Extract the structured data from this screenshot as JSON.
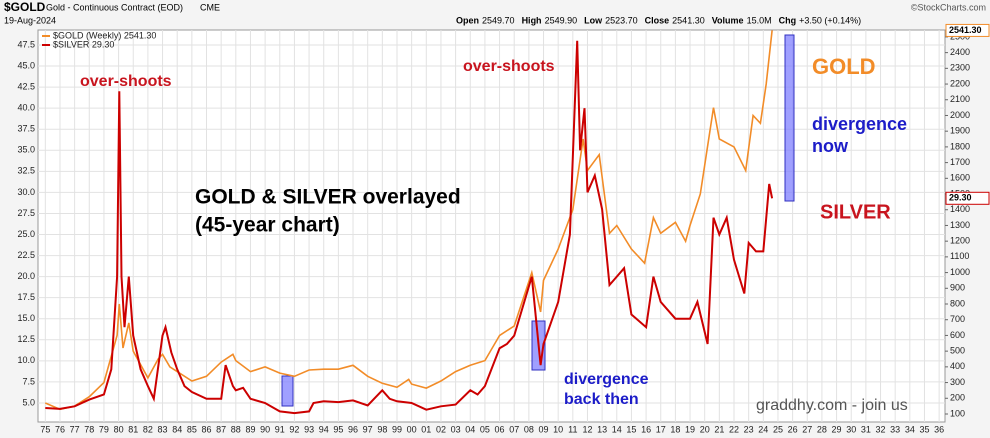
{
  "chart_data": {
    "type": "line",
    "header": {
      "symbol": "$GOLD",
      "description": "Gold - Continuous Contract (EOD)",
      "exchange": "CME",
      "source": "©StockCharts.com",
      "date": "19-Aug-2024",
      "quote": [
        [
          "Open",
          "2549.70"
        ],
        [
          "High",
          "2549.90"
        ],
        [
          "Low",
          "2523.70"
        ],
        [
          "Close",
          "2541.30"
        ],
        [
          "Volume",
          "15.0M"
        ],
        [
          "Chg",
          "+3.50 (+0.14%)"
        ]
      ]
    },
    "xlim": [
      1974.5,
      2036.4
    ],
    "xticks": [
      {
        "value": 1975,
        "label": "75"
      },
      {
        "value": 1976,
        "label": "76"
      },
      {
        "value": 1977,
        "label": "77"
      },
      {
        "value": 1978,
        "label": "78"
      },
      {
        "value": 1979,
        "label": "79"
      },
      {
        "value": 1980,
        "label": "80"
      },
      {
        "value": 1981,
        "label": "81"
      },
      {
        "value": 1982,
        "label": "82"
      },
      {
        "value": 1983,
        "label": "83"
      },
      {
        "value": 1984,
        "label": "84"
      },
      {
        "value": 1985,
        "label": "85"
      },
      {
        "value": 1986,
        "label": "86"
      },
      {
        "value": 1987,
        "label": "87"
      },
      {
        "value": 1988,
        "label": "88"
      },
      {
        "value": 1989,
        "label": "89"
      },
      {
        "value": 1990,
        "label": "90"
      },
      {
        "value": 1991,
        "label": "91"
      },
      {
        "value": 1992,
        "label": "92"
      },
      {
        "value": 1993,
        "label": "93"
      },
      {
        "value": 1994,
        "label": "94"
      },
      {
        "value": 1995,
        "label": "95"
      },
      {
        "value": 1996,
        "label": "96"
      },
      {
        "value": 1997,
        "label": "97"
      },
      {
        "value": 1998,
        "label": "98"
      },
      {
        "value": 1999,
        "label": "99"
      },
      {
        "value": 2000,
        "label": "00"
      },
      {
        "value": 2001,
        "label": "01"
      },
      {
        "value": 2002,
        "label": "02"
      },
      {
        "value": 2003,
        "label": "03"
      },
      {
        "value": 2004,
        "label": "04"
      },
      {
        "value": 2005,
        "label": "05"
      },
      {
        "value": 2006,
        "label": "06"
      },
      {
        "value": 2007,
        "label": "07"
      },
      {
        "value": 2008,
        "label": "08"
      },
      {
        "value": 2009,
        "label": "09"
      },
      {
        "value": 2010,
        "label": "10"
      },
      {
        "value": 2011,
        "label": "11"
      },
      {
        "value": 2012,
        "label": "12"
      },
      {
        "value": 2013,
        "label": "13"
      },
      {
        "value": 2014,
        "label": "14"
      },
      {
        "value": 2015,
        "label": "15"
      },
      {
        "value": 2016,
        "label": "16"
      },
      {
        "value": 2017,
        "label": "17"
      },
      {
        "value": 2018,
        "label": "18"
      },
      {
        "value": 2019,
        "label": "19"
      },
      {
        "value": 2020,
        "label": "20"
      },
      {
        "value": 2021,
        "label": "21"
      },
      {
        "value": 2022,
        "label": "22"
      },
      {
        "value": 2023,
        "label": "23"
      },
      {
        "value": 2024,
        "label": "24"
      },
      {
        "value": 2025,
        "label": "25"
      },
      {
        "value": 2026,
        "label": "26"
      },
      {
        "value": 2027,
        "label": "27"
      },
      {
        "value": 2028,
        "label": "28"
      },
      {
        "value": 2029,
        "label": "29"
      },
      {
        "value": 2030,
        "label": "30"
      },
      {
        "value": 2031,
        "label": "31"
      },
      {
        "value": 2032,
        "label": "32"
      },
      {
        "value": 2033,
        "label": "33"
      },
      {
        "value": 2034,
        "label": "34"
      },
      {
        "value": 2035,
        "label": "35"
      },
      {
        "value": 2036,
        "label": "36"
      }
    ],
    "ylim": [
      2.74,
      49.28
    ],
    "yticks": [
      {
        "value": 5,
        "label": "5.0"
      },
      7.5,
      {
        "value": 10,
        "label": "10.0"
      },
      12.5,
      {
        "value": 15,
        "label": "15.0"
      },
      17.5,
      {
        "value": 20,
        "label": "20.0"
      },
      22.5,
      {
        "value": 25,
        "label": "25.0"
      },
      27.5,
      {
        "value": 30,
        "label": "30.0"
      },
      32.5,
      {
        "value": 35,
        "label": "35.0"
      },
      37.5,
      {
        "value": 40,
        "label": "40.0"
      },
      42.5,
      {
        "value": 45,
        "label": "45.0"
      },
      47.5
    ],
    "y2lim": [
      49,
      2544
    ],
    "y2ticks": [
      100,
      200,
      300,
      400,
      500,
      600,
      700,
      800,
      900,
      1000,
      1100,
      1200,
      1300,
      1400,
      1500,
      1600,
      1700,
      1800,
      1900,
      2000,
      2100,
      2200,
      2300,
      2400,
      2500
    ],
    "grid": true,
    "series": [
      {
        "name": "$GOLD (Weekly) 2541.30",
        "color": "#f28c28",
        "axis": "y2",
        "last_label": "2541.30",
        "x": [
          1975,
          1976,
          1977,
          1978,
          1979,
          1979.9,
          1980.05,
          1980.3,
          1980.7,
          1981,
          1982,
          1982.7,
          1983,
          1983.5,
          1984,
          1985,
          1986,
          1987,
          1987.8,
          1988,
          1989,
          1990,
          1991,
          1992,
          1993,
          1994,
          1995,
          1996,
          1997,
          1998,
          1999,
          1999.8,
          2000,
          2001,
          2002,
          2003,
          2004,
          2005,
          2006,
          2007,
          2008.2,
          2008.8,
          2009,
          2010,
          2011,
          2011.7,
          2012,
          2012.8,
          2013.5,
          2014,
          2015,
          2015.9,
          2016.5,
          2017,
          2018,
          2018.7,
          2019,
          2019.7,
          2020.6,
          2021,
          2022,
          2022.8,
          2023.3,
          2023.8,
          2024.2,
          2024.6
        ],
        "values": [
          170,
          130,
          150,
          210,
          300,
          600,
          800,
          520,
          680,
          500,
          330,
          450,
          480,
          400,
          370,
          310,
          340,
          430,
          480,
          440,
          370,
          400,
          360,
          340,
          380,
          385,
          385,
          410,
          340,
          295,
          270,
          320,
          290,
          265,
          310,
          370,
          410,
          440,
          600,
          660,
          1000,
          750,
          950,
          1150,
          1400,
          1850,
          1650,
          1750,
          1250,
          1300,
          1150,
          1060,
          1350,
          1250,
          1320,
          1200,
          1300,
          1500,
          2050,
          1850,
          1800,
          1650,
          2000,
          1950,
          2200,
          2541.3
        ]
      },
      {
        "name": "$SILVER 29.30",
        "color": "#cc0000",
        "last_label": "29.30",
        "x": [
          1975,
          1976,
          1977,
          1978,
          1979,
          1979.5,
          1979.9,
          1980.05,
          1980.2,
          1980.4,
          1980.7,
          1981,
          1981.5,
          1982,
          1982.4,
          1983,
          1983.2,
          1983.6,
          1984,
          1984.5,
          1985,
          1986,
          1987,
          1987.3,
          1987.8,
          1988,
          1988.5,
          1989,
          1990,
          1991,
          1992,
          1993,
          1993.3,
          1994,
          1995,
          1996,
          1997,
          1998,
          1998.5,
          1999,
          2000,
          2001,
          2002,
          2003,
          2004,
          2004.5,
          2005,
          2006,
          2006.5,
          2007,
          2008.2,
          2008.8,
          2009,
          2010,
          2010.8,
          2011.3,
          2011.5,
          2011.8,
          2012,
          2012.5,
          2013,
          2013.5,
          2014,
          2014.5,
          2015,
          2016,
          2016.5,
          2017,
          2018,
          2019,
          2019.5,
          2020.2,
          2020.6,
          2021,
          2021.5,
          2022,
          2022.7,
          2023,
          2023.5,
          2024,
          2024.4,
          2024.6
        ],
        "values": [
          4.4,
          4.3,
          4.6,
          5.4,
          6,
          9,
          20,
          42,
          20,
          14,
          20,
          13,
          9,
          7,
          5.5,
          13,
          14,
          11,
          9,
          7,
          6.3,
          5.5,
          5.5,
          9.5,
          7,
          6.5,
          6.8,
          5.5,
          5,
          4,
          3.8,
          4,
          5,
          5.2,
          5.1,
          5.3,
          4.7,
          6.5,
          5.5,
          5.2,
          5,
          4.2,
          4.6,
          4.8,
          6.5,
          6,
          7,
          11.5,
          12,
          13,
          20,
          9.5,
          12,
          17,
          25,
          48,
          35,
          40,
          30,
          32,
          28,
          19,
          20,
          21,
          15.5,
          14,
          20,
          17,
          15,
          15,
          17,
          12,
          27,
          25,
          27,
          22,
          18,
          24,
          23,
          23,
          31,
          29.3
        ]
      }
    ],
    "annotations": [
      {
        "text": [
          "over-shoots"
        ],
        "color": "#c8141e"
      },
      {
        "text": [
          "over-shoots"
        ],
        "color": "#c8141e"
      },
      {
        "text": [
          "GOLD & SILVER overlayed",
          "(45-year chart)"
        ],
        "color": "#000000"
      },
      {
        "text": [
          "GOLD"
        ],
        "color": "#f28c28"
      },
      {
        "text": [
          "divergence",
          "now"
        ],
        "color": "#1c1cc8"
      },
      {
        "text": [
          "SILVER"
        ],
        "color": "#c8141e"
      },
      {
        "text": [
          "divergence",
          "back then"
        ],
        "color": "#1c1cc8"
      },
      {
        "text": [
          "graddhy.com - join us"
        ],
        "color": "#555555"
      }
    ]
  }
}
